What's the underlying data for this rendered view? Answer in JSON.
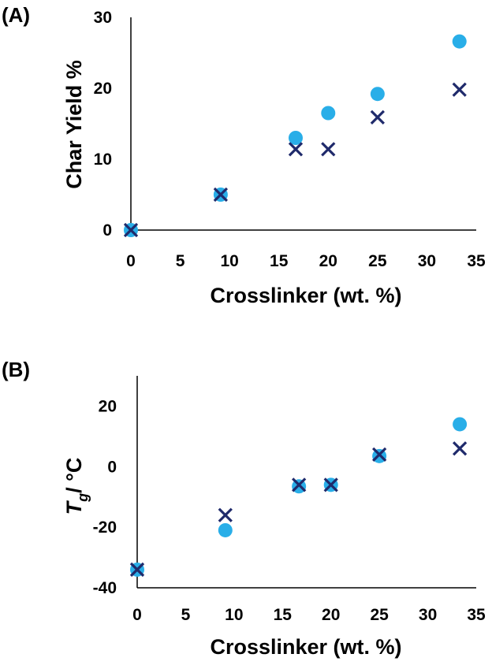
{
  "chart_data": [
    {
      "type": "scatter",
      "panel_label": "(A)",
      "xlabel": "Crosslinker (wt. %)",
      "ylabel": "Char Yield %",
      "xlim": [
        0,
        35
      ],
      "ylim": [
        0,
        30
      ],
      "xticks": [
        "0",
        "5",
        "10",
        "15",
        "20",
        "25",
        "30",
        "35"
      ],
      "yticks": [
        "0",
        "10",
        "20",
        "30"
      ],
      "grid": false,
      "series": [
        {
          "marker": "circle",
          "color": "#29aee8",
          "points": [
            [
              0,
              0
            ],
            [
              9.1,
              5
            ],
            [
              16.7,
              13
            ],
            [
              20,
              16.5
            ],
            [
              25,
              19.2
            ],
            [
              33.3,
              26.6
            ]
          ]
        },
        {
          "marker": "x",
          "color": "#1f2a6b",
          "points": [
            [
              0,
              0
            ],
            [
              9.1,
              5
            ],
            [
              16.7,
              11.4
            ],
            [
              20,
              11.4
            ],
            [
              25,
              15.9
            ],
            [
              33.3,
              19.8
            ]
          ]
        }
      ]
    },
    {
      "type": "scatter",
      "panel_label": "(B)",
      "xlabel": "Crosslinker (wt. %)",
      "ylabel_main": "T",
      "ylabel_sub": "g",
      "ylabel_rest": "/ °C",
      "xlim": [
        0,
        35
      ],
      "ylim": [
        -40,
        30
      ],
      "xticks": [
        "0",
        "5",
        "10",
        "15",
        "20",
        "25",
        "30",
        "35"
      ],
      "yticks": [
        "-40",
        "-20",
        "0",
        "20"
      ],
      "grid": false,
      "series": [
        {
          "marker": "circle",
          "color": "#29aee8",
          "points": [
            [
              0,
              -34
            ],
            [
              9.1,
              -21
            ],
            [
              16.7,
              -6.5
            ],
            [
              20,
              -6
            ],
            [
              25,
              3.5
            ],
            [
              33.3,
              14
            ]
          ]
        },
        {
          "marker": "x",
          "color": "#1f2a6b",
          "points": [
            [
              0,
              -34
            ],
            [
              9.1,
              -16
            ],
            [
              16.7,
              -6
            ],
            [
              20,
              -6
            ],
            [
              25,
              4
            ],
            [
              33.3,
              6
            ]
          ]
        }
      ]
    }
  ]
}
